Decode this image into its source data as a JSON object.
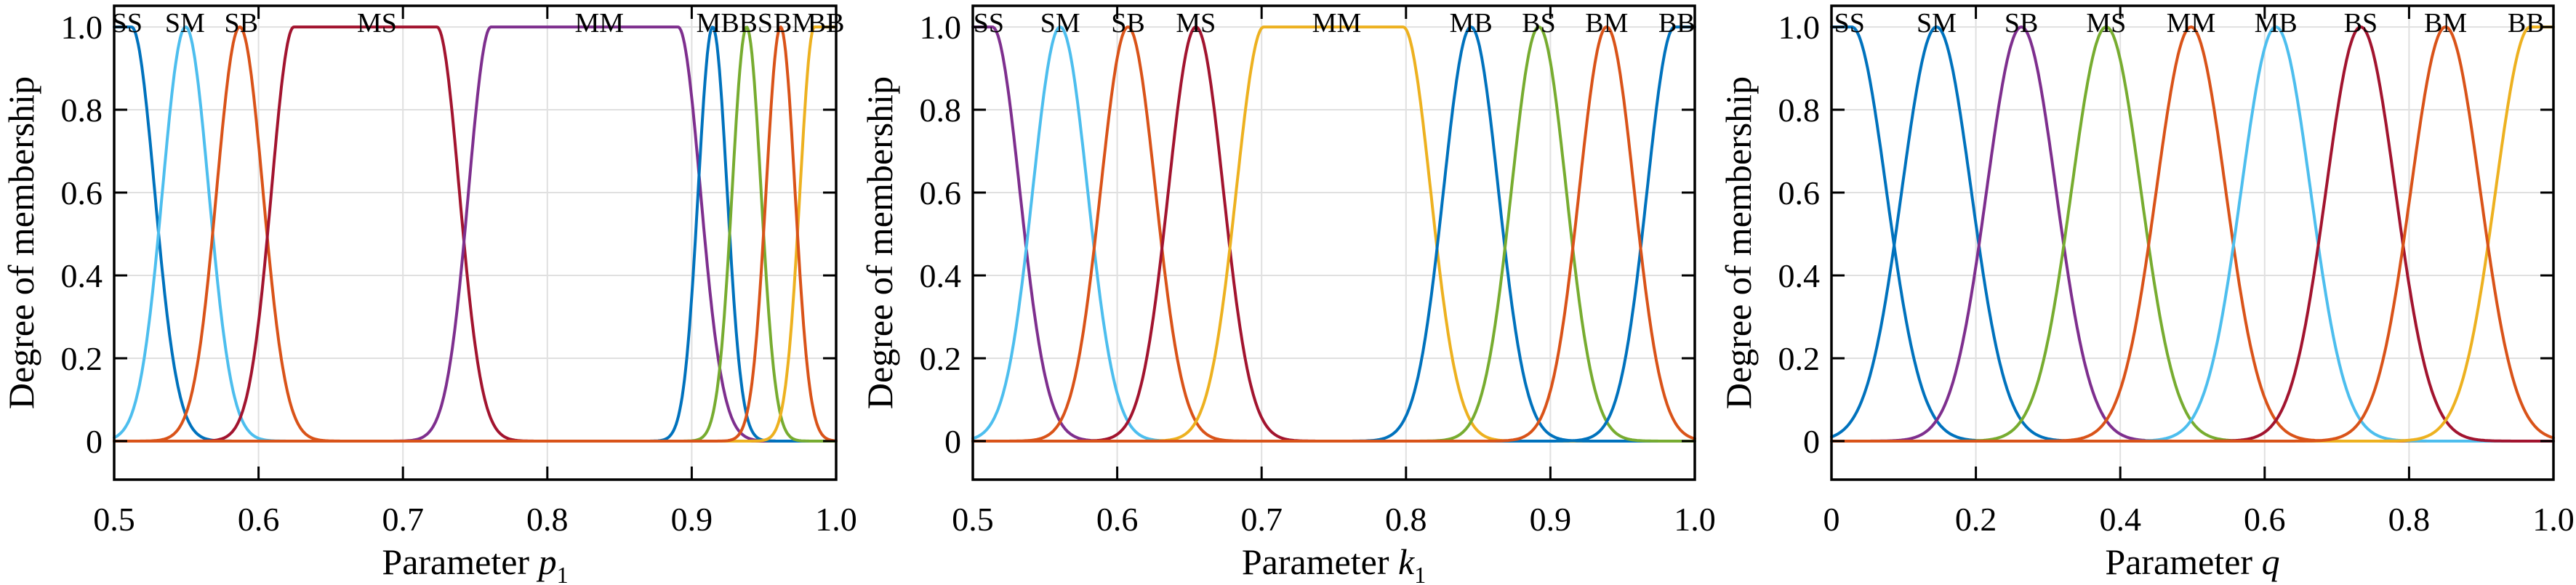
{
  "figure": {
    "ylabel": "Degree of membership",
    "background": "#ffffff",
    "text_color": "#000000",
    "grid_color": "#e0e0e0",
    "axis_color": "#000000",
    "palette": {
      "blue": "#0072BD",
      "orange": "#D95319",
      "yellow": "#EDB120",
      "purple": "#7E2F8E",
      "green": "#77AC30",
      "cyan": "#4DBEEE",
      "darkred": "#A2142F"
    }
  },
  "chart_data": [
    {
      "type": "line",
      "title": "",
      "ylabel": "Degree of membership",
      "xlabel": {
        "prefix": "Parameter ",
        "variable": "p",
        "subscript": "1"
      },
      "xlim": [
        0.5,
        1.0
      ],
      "ylim": [
        -0.093,
        1.051
      ],
      "grid": true,
      "legend_position": "labels-above-curves",
      "x_ticks": [
        {
          "v": 0.5,
          "label": "0.5"
        },
        {
          "v": 0.6,
          "label": "0.6"
        },
        {
          "v": 0.7,
          "label": "0.7"
        },
        {
          "v": 0.8,
          "label": "0.8"
        },
        {
          "v": 0.9,
          "label": "0.9"
        },
        {
          "v": 1.0,
          "label": "1.0"
        }
      ],
      "y_ticks": [
        {
          "v": 0,
          "label": "0"
        },
        {
          "v": 0.2,
          "label": "0.2"
        },
        {
          "v": 0.4,
          "label": "0.4"
        },
        {
          "v": 0.6,
          "label": "0.6"
        },
        {
          "v": 0.8,
          "label": "0.8"
        },
        {
          "v": 1.0,
          "label": "1.0"
        }
      ],
      "series": [
        {
          "name": "SS",
          "mf": "z_shoulder",
          "center": 0.512,
          "sigma": 0.016,
          "color": "#0072BD",
          "label_x": 0.509
        },
        {
          "name": "SM",
          "mf": "gauss",
          "center": 0.5495,
          "sigma": 0.016,
          "color": "#4DBEEE",
          "label_x": 0.549
        },
        {
          "name": "SB",
          "mf": "gauss",
          "center": 0.587,
          "sigma": 0.016,
          "color": "#D95319",
          "label_x": 0.588
        },
        {
          "name": "MS",
          "mf": "gauss2",
          "center_left": 0.6245,
          "center_right": 0.7235,
          "sigma": 0.0155,
          "color": "#A2142F",
          "label_x": 0.682
        },
        {
          "name": "MM",
          "mf": "gauss2",
          "center_left": 0.761,
          "center_right": 0.8905,
          "sigma": 0.0155,
          "color": "#7E2F8E",
          "label_x": 0.836
        },
        {
          "name": "MB",
          "mf": "gauss",
          "center": 0.9145,
          "sigma": 0.01,
          "color": "#0072BD",
          "label_x": 0.918
        },
        {
          "name": "BS",
          "mf": "gauss",
          "center": 0.938,
          "sigma": 0.01,
          "color": "#77AC30",
          "label_x": 0.9445
        },
        {
          "name": "BM",
          "mf": "gauss",
          "center": 0.9615,
          "sigma": 0.01,
          "color": "#D95319",
          "label_x": 0.9715
        },
        {
          "name": "BB",
          "mf": "s_shoulder",
          "center": 0.985,
          "sigma": 0.01,
          "color": "#EDB120",
          "label_x": 0.993
        }
      ],
      "draw_order": [
        0,
        1,
        2,
        3,
        4,
        5,
        6,
        8,
        7
      ]
    },
    {
      "type": "line",
      "title": "",
      "ylabel": "Degree of membership",
      "xlabel": {
        "prefix": "Parameter ",
        "variable": "k",
        "subscript": "1"
      },
      "xlim": [
        0.5,
        1.0
      ],
      "ylim": [
        -0.093,
        1.051
      ],
      "grid": true,
      "legend_position": "labels-above-curves",
      "x_ticks": [
        {
          "v": 0.5,
          "label": "0.5"
        },
        {
          "v": 0.6,
          "label": "0.6"
        },
        {
          "v": 0.7,
          "label": "0.7"
        },
        {
          "v": 0.8,
          "label": "0.8"
        },
        {
          "v": 0.9,
          "label": "0.9"
        },
        {
          "v": 1.0,
          "label": "1.0"
        }
      ],
      "y_ticks": [
        {
          "v": 0,
          "label": "0"
        },
        {
          "v": 0.2,
          "label": "0.2"
        },
        {
          "v": 0.4,
          "label": "0.4"
        },
        {
          "v": 0.6,
          "label": "0.6"
        },
        {
          "v": 0.8,
          "label": "0.8"
        },
        {
          "v": 1.0,
          "label": "1.0"
        }
      ],
      "series": [
        {
          "name": "SS",
          "mf": "z_shoulder",
          "center": 0.5135,
          "sigma": 0.019,
          "color": "#7E2F8E",
          "label_x": 0.511
        },
        {
          "name": "SM",
          "mf": "gauss",
          "center": 0.5605,
          "sigma": 0.019,
          "color": "#4DBEEE",
          "label_x": 0.5605
        },
        {
          "name": "SB",
          "mf": "gauss",
          "center": 0.6075,
          "sigma": 0.019,
          "color": "#D95319",
          "label_x": 0.6075
        },
        {
          "name": "MS",
          "mf": "gauss",
          "center": 0.6545,
          "sigma": 0.019,
          "color": "#A2142F",
          "label_x": 0.6545
        },
        {
          "name": "MM",
          "mf": "gauss2",
          "center_left": 0.7015,
          "center_right": 0.798,
          "sigma": 0.019,
          "color": "#EDB120",
          "label_x": 0.752
        },
        {
          "name": "MB",
          "mf": "gauss",
          "center": 0.845,
          "sigma": 0.019,
          "color": "#0072BD",
          "label_x": 0.845
        },
        {
          "name": "BS",
          "mf": "gauss",
          "center": 0.892,
          "sigma": 0.019,
          "color": "#77AC30",
          "label_x": 0.892
        },
        {
          "name": "BM",
          "mf": "gauss",
          "center": 0.939,
          "sigma": 0.019,
          "color": "#D95319",
          "label_x": 0.939
        },
        {
          "name": "BB",
          "mf": "s_shoulder",
          "center": 0.986,
          "sigma": 0.019,
          "color": "#0072BD",
          "label_x": 0.9875
        }
      ],
      "draw_order": [
        0,
        1,
        2,
        3,
        4,
        5,
        6,
        8,
        7
      ]
    },
    {
      "type": "line",
      "title": "",
      "ylabel": "Degree of membership",
      "xlabel": {
        "prefix": "Parameter ",
        "variable": "q",
        "subscript": ""
      },
      "xlim": [
        0,
        1.0
      ],
      "ylim": [
        -0.093,
        1.051
      ],
      "grid": true,
      "legend_position": "labels-above-curves",
      "x_ticks": [
        {
          "v": 0,
          "label": "0"
        },
        {
          "v": 0.2,
          "label": "0.2"
        },
        {
          "v": 0.4,
          "label": "0.4"
        },
        {
          "v": 0.6,
          "label": "0.6"
        },
        {
          "v": 0.8,
          "label": "0.8"
        },
        {
          "v": 1.0,
          "label": "1.0"
        }
      ],
      "y_ticks": [
        {
          "v": 0,
          "label": "0"
        },
        {
          "v": 0.2,
          "label": "0.2"
        },
        {
          "v": 0.4,
          "label": "0.4"
        },
        {
          "v": 0.6,
          "label": "0.6"
        },
        {
          "v": 0.8,
          "label": "0.8"
        },
        {
          "v": 1.0,
          "label": "1.0"
        }
      ],
      "series": [
        {
          "name": "SS",
          "mf": "z_shoulder",
          "center": 0.028,
          "sigma": 0.048,
          "color": "#0072BD",
          "label_x": 0.025
        },
        {
          "name": "SM",
          "mf": "gauss",
          "center": 0.1455,
          "sigma": 0.048,
          "color": "#0072BD",
          "label_x": 0.1455
        },
        {
          "name": "SB",
          "mf": "gauss",
          "center": 0.263,
          "sigma": 0.048,
          "color": "#7E2F8E",
          "label_x": 0.263
        },
        {
          "name": "MS",
          "mf": "gauss",
          "center": 0.3805,
          "sigma": 0.048,
          "color": "#77AC30",
          "label_x": 0.3805
        },
        {
          "name": "MM",
          "mf": "gauss",
          "center": 0.498,
          "sigma": 0.048,
          "color": "#D95319",
          "label_x": 0.498
        },
        {
          "name": "MB",
          "mf": "gauss",
          "center": 0.6155,
          "sigma": 0.048,
          "color": "#4DBEEE",
          "label_x": 0.6155
        },
        {
          "name": "BS",
          "mf": "gauss",
          "center": 0.733,
          "sigma": 0.048,
          "color": "#A2142F",
          "label_x": 0.733
        },
        {
          "name": "BM",
          "mf": "gauss",
          "center": 0.8505,
          "sigma": 0.048,
          "color": "#D95319",
          "label_x": 0.8505
        },
        {
          "name": "BB",
          "mf": "s_shoulder",
          "center": 0.968,
          "sigma": 0.048,
          "color": "#EDB120",
          "label_x": 0.962
        }
      ],
      "draw_order": [
        0,
        1,
        2,
        3,
        4,
        5,
        6,
        8,
        7
      ]
    }
  ]
}
